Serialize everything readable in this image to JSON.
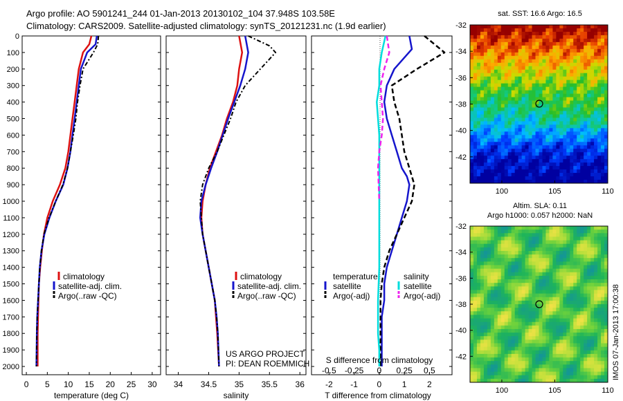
{
  "header": {
    "title_line1": "Argo profile: AO 5901241_244 01-Jan-2013 20130102_104 37.948S 103.58E",
    "title_line2": "Climatology: CARS2009. Satellite-adjusted climatology: synTS_20121231.nc (1.9d earlier)"
  },
  "credits": {
    "line1": "US ARGO PROJECT",
    "line2": "PI: DEAN ROEMMICH"
  },
  "watermark": "IMOS 07-Jan-2013 17:00:38",
  "colors": {
    "climatology": "#dd1111",
    "satellite": "#1515cc",
    "argo": "#000000",
    "salinity_sat": "#00dddd",
    "salinity_argo": "#ee22ee"
  },
  "depth_ticks": [
    0,
    100,
    200,
    300,
    400,
    500,
    600,
    700,
    800,
    900,
    1000,
    1100,
    1200,
    1300,
    1400,
    1500,
    1600,
    1700,
    1800,
    1900,
    2000
  ],
  "panel_temp": {
    "xlabel": "temperature (deg C)",
    "xticks": [
      0,
      5,
      10,
      15,
      20,
      25,
      30
    ],
    "legend": [
      "climatology",
      "satellite-adj. clim.",
      "Argo(..raw -QC)"
    ]
  },
  "panel_sal": {
    "xlabel": "salinity",
    "xticks": [
      34,
      34.5,
      35,
      35.5,
      36
    ],
    "xtick_labels": [
      "34",
      "34.5",
      "35",
      "35.5",
      "36"
    ],
    "legend": [
      "climatology",
      "satellite-adj. clim.",
      "Argo(..raw -QC)"
    ]
  },
  "panel_diff": {
    "top_xlabel": "S difference from climatology",
    "top_xticks": [
      "-0.5",
      "-0.25",
      "0",
      "0.25",
      "0.5"
    ],
    "xlabel": "T difference from climatology",
    "xticks": [
      "-2",
      "-1",
      "0",
      "1",
      "2"
    ],
    "legend_temp_title": "temperature",
    "legend_temp": [
      "satellite",
      "Argo(-adj)"
    ],
    "legend_sal_title": "salinity",
    "legend_sal": [
      "satellite",
      "Argo(-adj)"
    ]
  },
  "map_sst": {
    "title": "sat. SST: 16.6  Argo: 16.5",
    "yticks": [
      "-32",
      "-34",
      "-36",
      "-38",
      "-40",
      "-42"
    ],
    "xticks": [
      "100",
      "105",
      "110"
    ]
  },
  "map_sla": {
    "title_line1": "Altim. SLA: 0.11",
    "title_line2": "Argo h1000: 0.057 h2000: NaN",
    "yticks": [
      "-32",
      "-34",
      "-36",
      "-38",
      "-40",
      "-42"
    ],
    "xticks": [
      "100",
      "105",
      "110"
    ]
  },
  "chart_data": [
    {
      "type": "line",
      "title": "",
      "xlabel": "temperature (deg C)",
      "ylabel": "",
      "xlim": [
        -1,
        32
      ],
      "ylim": [
        2050,
        0
      ],
      "series": [
        {
          "name": "climatology",
          "x": [
            15.5,
            15.0,
            13.5,
            12.5,
            12.0,
            11.5,
            11.0,
            10.5,
            10.0,
            9.3,
            8.0,
            6.3,
            5.0,
            4.2,
            3.7,
            3.3,
            3.0,
            2.9,
            2.8,
            2.7,
            2.7
          ],
          "y": [
            0,
            50,
            100,
            200,
            300,
            400,
            500,
            600,
            700,
            800,
            900,
            1000,
            1100,
            1200,
            1300,
            1400,
            1500,
            1600,
            1700,
            1800,
            2000
          ]
        },
        {
          "name": "satellite-adj. clim.",
          "x": [
            16.8,
            16.5,
            14.5,
            13.0,
            12.5,
            12.0,
            11.5,
            11.0,
            10.5,
            9.8,
            8.8,
            7.0,
            5.5,
            4.3,
            3.6,
            3.2,
            3.0,
            2.8,
            2.6,
            2.5,
            2.4
          ],
          "y": [
            0,
            50,
            100,
            200,
            300,
            400,
            500,
            600,
            700,
            800,
            900,
            1000,
            1100,
            1200,
            1300,
            1400,
            1500,
            1600,
            1700,
            1800,
            2000
          ]
        },
        {
          "name": "Argo(..raw -QC)",
          "x": [
            17.2,
            17.0,
            16.0,
            13.5,
            12.8,
            12.2,
            11.8,
            11.2,
            10.5,
            9.8,
            8.7,
            7.0,
            5.4,
            4.2,
            3.6,
            3.2,
            3.0,
            2.8,
            2.6,
            2.5,
            2.4
          ],
          "y": [
            0,
            50,
            100,
            200,
            300,
            400,
            500,
            600,
            700,
            800,
            900,
            1000,
            1100,
            1200,
            1300,
            1400,
            1500,
            1600,
            1700,
            1800,
            2000
          ]
        }
      ]
    },
    {
      "type": "line",
      "title": "",
      "xlabel": "salinity",
      "ylabel": "",
      "xlim": [
        33.8,
        36.1
      ],
      "ylim": [
        2050,
        0
      ],
      "series": [
        {
          "name": "climatology",
          "x": [
            35.0,
            35.05,
            35.0,
            34.97,
            34.9,
            34.8,
            34.72,
            34.62,
            34.52,
            34.45,
            34.4,
            34.38,
            34.4,
            34.45,
            34.5,
            34.55,
            34.6,
            34.62,
            34.64,
            34.67
          ],
          "y": [
            0,
            100,
            200,
            300,
            400,
            500,
            600,
            700,
            800,
            900,
            1000,
            1100,
            1200,
            1300,
            1400,
            1500,
            1600,
            1700,
            1800,
            2000
          ]
        },
        {
          "name": "satellite-adj. clim.",
          "x": [
            35.1,
            35.15,
            35.1,
            35.02,
            34.92,
            34.82,
            34.73,
            34.64,
            34.54,
            34.45,
            34.38,
            34.36,
            34.4,
            34.45,
            34.5,
            34.55,
            34.6,
            34.63,
            34.65,
            34.67
          ],
          "y": [
            0,
            100,
            200,
            300,
            400,
            500,
            600,
            700,
            800,
            900,
            1000,
            1100,
            1200,
            1300,
            1400,
            1500,
            1600,
            1700,
            1800,
            2000
          ]
        },
        {
          "name": "Argo(..raw -QC)",
          "x": [
            35.15,
            35.5,
            35.6,
            35.35,
            35.1,
            34.95,
            34.86,
            34.75,
            34.64,
            34.5,
            34.4,
            34.36,
            34.4,
            34.45,
            34.5,
            34.55,
            34.6,
            34.63,
            34.65,
            34.67
          ],
          "y": [
            0,
            60,
            100,
            200,
            300,
            400,
            500,
            600,
            700,
            800,
            900,
            1000,
            1200,
            1300,
            1400,
            1500,
            1600,
            1700,
            1800,
            2000
          ]
        }
      ]
    },
    {
      "type": "line",
      "title": "",
      "xlabel": "T difference from climatology",
      "ylabel": "",
      "xlim": [
        -2.7,
        2.9
      ],
      "ylim": [
        2050,
        0
      ],
      "series": [
        {
          "name": "temperature satellite",
          "x": [
            1.2,
            1.3,
            0.6,
            0.3,
            0.2,
            0.3,
            0.5,
            0.7,
            0.9,
            1.1,
            1.2,
            1.1,
            0.9,
            0.7,
            0.5,
            0.3,
            0.2,
            0.2,
            0.1,
            0.1,
            0.1
          ],
          "y": [
            0,
            80,
            200,
            300,
            400,
            500,
            600,
            700,
            800,
            850,
            900,
            1000,
            1100,
            1200,
            1300,
            1400,
            1500,
            1600,
            1700,
            1800,
            2000
          ]
        },
        {
          "name": "temperature Argo(-adj)",
          "x": [
            1.8,
            2.6,
            1.5,
            0.5,
            0.6,
            0.8,
            0.9,
            1.0,
            1.2,
            1.4,
            1.3,
            1.0,
            0.7,
            0.4,
            0.2,
            0.1,
            0.05,
            0.05,
            0.05
          ],
          "y": [
            0,
            100,
            200,
            300,
            400,
            500,
            600,
            700,
            800,
            900,
            1000,
            1100,
            1200,
            1300,
            1400,
            1500,
            1600,
            1800,
            2000
          ]
        },
        {
          "name": "salinity satellite",
          "x": [
            0.25,
            0.1,
            0.0,
            0.0,
            -0.1,
            0.0,
            0.0,
            0.0,
            0.0,
            0.0,
            0.0,
            -0.05,
            -0.05,
            0.0,
            0.0
          ],
          "y": [
            0,
            100,
            200,
            300,
            400,
            600,
            800,
            900,
            1000,
            1200,
            1400,
            1600,
            1800,
            1900,
            2000
          ]
        },
        {
          "name": "salinity Argo(-adj)",
          "x": [
            0.3,
            0.4,
            0.2,
            0.05,
            0.1,
            0.15,
            0.1,
            0.0,
            -0.05,
            0.0
          ],
          "y": [
            0,
            100,
            200,
            300,
            400,
            500,
            600,
            700,
            800,
            1000
          ]
        }
      ]
    }
  ]
}
